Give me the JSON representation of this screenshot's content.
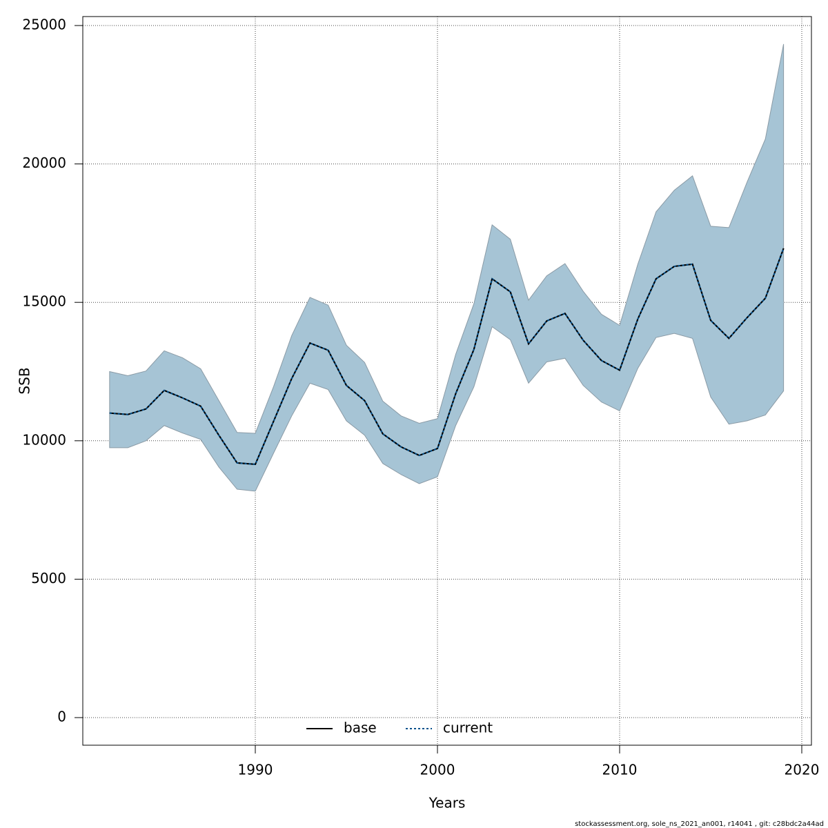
{
  "chart_data": {
    "type": "line",
    "xlabel": "Years",
    "ylabel": "SSB",
    "footer": "stockassessment.org, sole_ns_2021_an001, r14041 , git: c28bdc2a44ad",
    "x": [
      1982,
      1983,
      1984,
      1985,
      1986,
      1987,
      1988,
      1989,
      1990,
      1991,
      1992,
      1993,
      1994,
      1995,
      1996,
      1997,
      1998,
      1999,
      2000,
      2001,
      2002,
      2003,
      2004,
      2005,
      2006,
      2007,
      2008,
      2009,
      2010,
      2011,
      2012,
      2013,
      2014,
      2015,
      2016,
      2017,
      2018,
      2019
    ],
    "band": {
      "color": "#a6c4d5",
      "lower": [
        9750,
        9750,
        10000,
        10550,
        10280,
        10050,
        9050,
        8250,
        8180,
        9550,
        10900,
        12080,
        11850,
        10720,
        10200,
        9180,
        8780,
        8450,
        8700,
        10550,
        11950,
        14120,
        13650,
        12080,
        12850,
        12980,
        12000,
        11400,
        11080,
        12620,
        13730,
        13880,
        13700,
        11580,
        10600,
        10720,
        10930,
        11800
      ],
      "upper": [
        12500,
        12350,
        12520,
        13250,
        13000,
        12600,
        11450,
        10300,
        10270,
        11950,
        13800,
        15180,
        14900,
        13450,
        12830,
        11430,
        10900,
        10630,
        10800,
        13120,
        14950,
        17800,
        17280,
        15080,
        15960,
        16400,
        15400,
        14570,
        14170,
        16380,
        18270,
        19050,
        19570,
        17750,
        17700,
        19350,
        20900,
        24330
      ]
    },
    "series": [
      {
        "name": "base",
        "color": "#000000",
        "dash": "solid",
        "values": [
          11000,
          10950,
          11150,
          11820,
          11550,
          11250,
          10200,
          9200,
          9150,
          10700,
          12250,
          13530,
          13270,
          12000,
          11450,
          10250,
          9780,
          9470,
          9720,
          11700,
          13300,
          15850,
          15380,
          13500,
          14330,
          14600,
          13630,
          12900,
          12550,
          14400,
          15850,
          16300,
          16380,
          14350,
          13700,
          14450,
          15150,
          16950
        ]
      },
      {
        "name": "current",
        "color": "#00508c",
        "dash": "dotted",
        "values": [
          11000,
          10950,
          11150,
          11820,
          11550,
          11250,
          10200,
          9200,
          9150,
          10700,
          12250,
          13530,
          13270,
          12000,
          11450,
          10250,
          9780,
          9470,
          9720,
          11700,
          13300,
          15850,
          15380,
          13500,
          14330,
          14600,
          13630,
          12900,
          12550,
          14400,
          15850,
          16300,
          16380,
          14350,
          13700,
          14450,
          15150,
          16950
        ]
      }
    ],
    "xlim": [
      1980.53,
      2020.53
    ],
    "ylim": [
      -997,
      25324
    ],
    "xticks": [
      1990,
      2000,
      2010,
      2020
    ],
    "yticks": [
      0,
      5000,
      10000,
      15000,
      20000,
      25000
    ],
    "grid": true,
    "legend": "bottom"
  }
}
